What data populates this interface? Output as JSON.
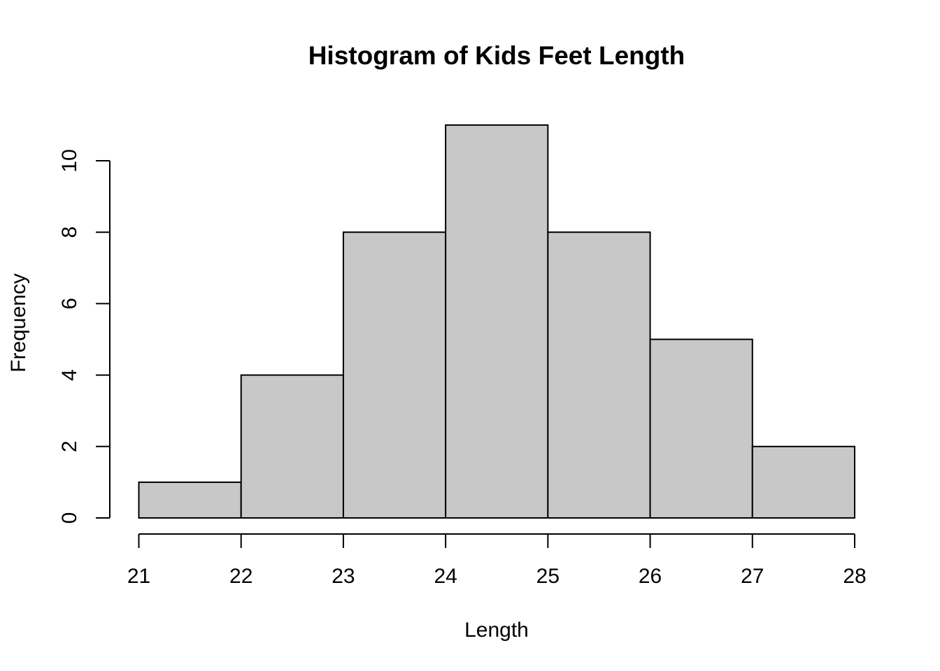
{
  "chart_data": {
    "type": "bar",
    "title": "Histogram of Kids Feet Length",
    "xlabel": "Length",
    "ylabel": "Frequency",
    "bins": [
      {
        "from": 21,
        "to": 22,
        "count": 1
      },
      {
        "from": 22,
        "to": 23,
        "count": 4
      },
      {
        "from": 23,
        "to": 24,
        "count": 8
      },
      {
        "from": 24,
        "to": 25,
        "count": 11
      },
      {
        "from": 25,
        "to": 26,
        "count": 8
      },
      {
        "from": 26,
        "to": 27,
        "count": 5
      },
      {
        "from": 27,
        "to": 28,
        "count": 2
      }
    ],
    "xticks": [
      21,
      22,
      23,
      24,
      25,
      26,
      27,
      28
    ],
    "yticks": [
      0,
      2,
      4,
      6,
      8,
      10
    ],
    "xlim": [
      21,
      28
    ],
    "ylim": [
      0,
      11
    ],
    "grid": false,
    "legend": "none",
    "bar_color": "#c8c8c8",
    "edge_color": "#000000"
  }
}
